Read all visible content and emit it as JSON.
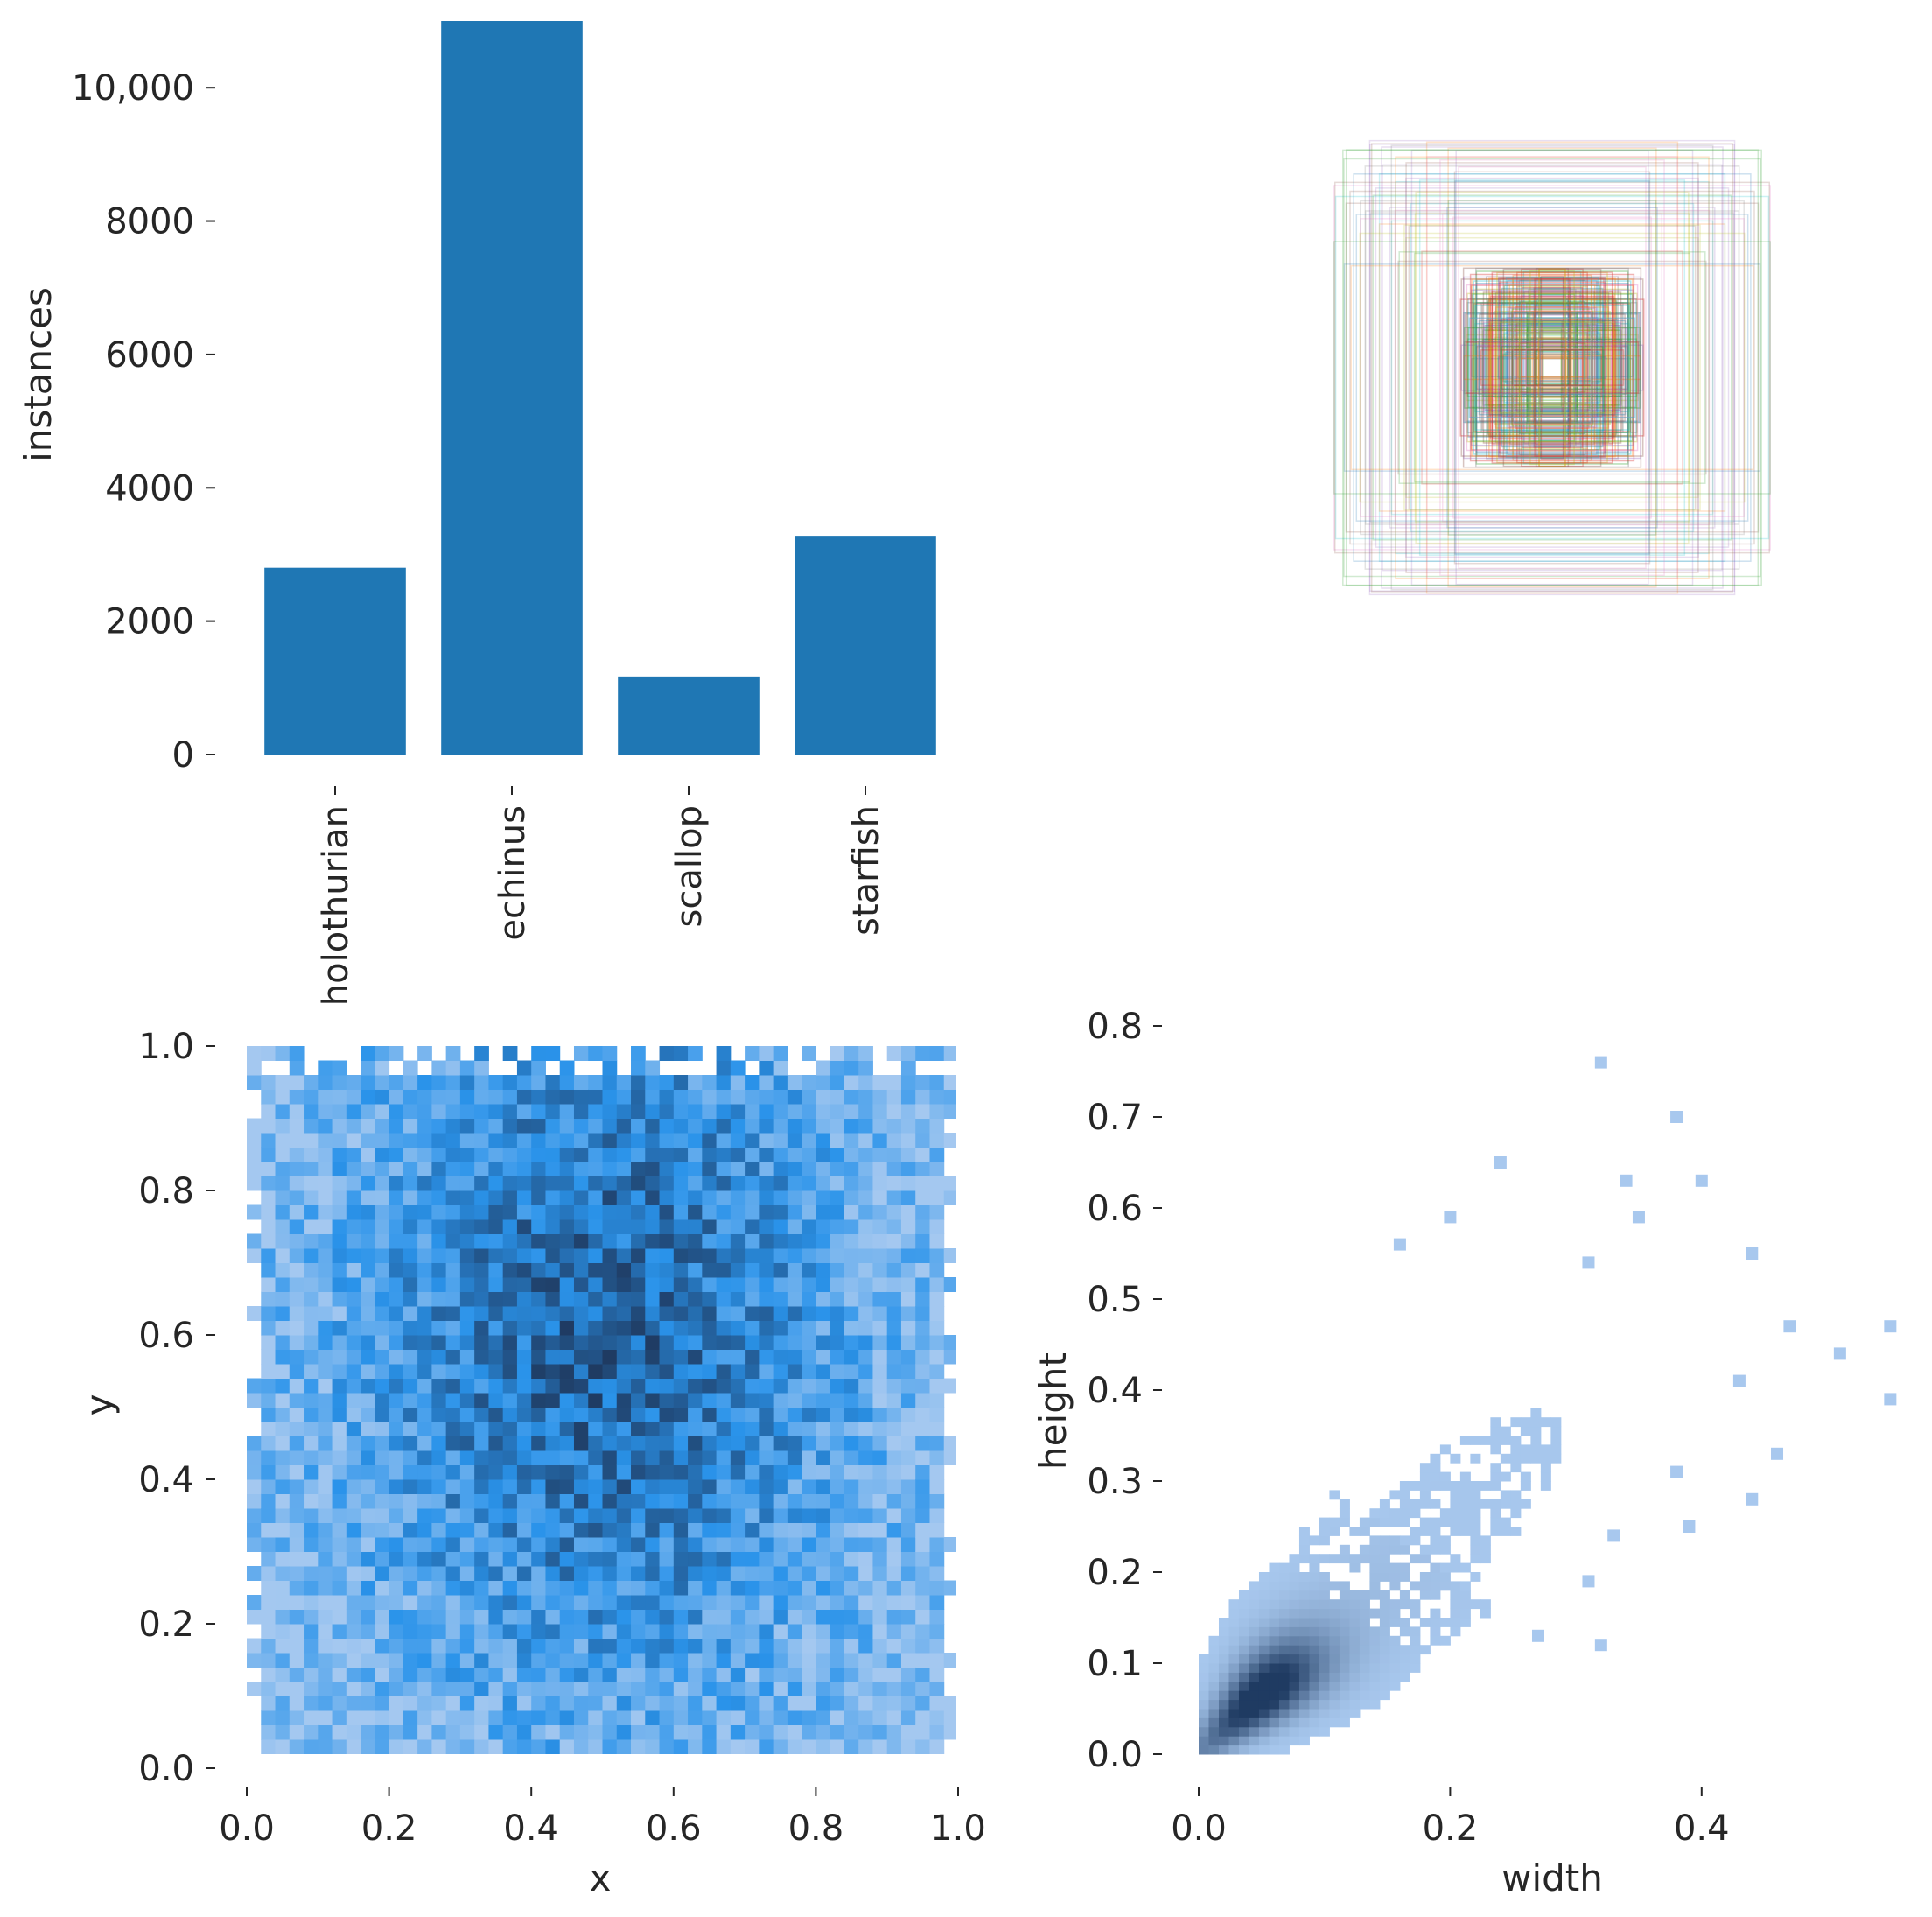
{
  "chart_data": [
    {
      "type": "bar",
      "categories": [
        "holothurian",
        "echinus",
        "scallop",
        "starfish"
      ],
      "values": [
        2800,
        11000,
        1170,
        3280
      ],
      "ylabel": "instances",
      "yticks": [
        "0",
        "2000",
        "4000",
        "6000",
        "8000",
        "10,000"
      ],
      "ylim": [
        0,
        11000
      ],
      "color": "#1f77b4",
      "grid": false
    },
    {
      "type": "box-overlay",
      "description": "Bounding box outlines centered on a common origin",
      "colors": [
        "#1f77b4",
        "#ff7f0e",
        "#2ca02c",
        "#d62728",
        "#9467bd",
        "#8c564b",
        "#e377c2",
        "#7f7f7f",
        "#bcbd22",
        "#17becf"
      ]
    },
    {
      "type": "heatmap",
      "xlabel": "x",
      "ylabel": "y",
      "xlim": [
        0,
        1
      ],
      "ylim": [
        0,
        1
      ],
      "xticks": [
        "0.0",
        "0.2",
        "0.4",
        "0.6",
        "0.8",
        "1.0"
      ],
      "yticks": [
        "0.0",
        "0.2",
        "0.4",
        "0.6",
        "0.8",
        "1.0"
      ],
      "data_extent": {
        "x": [
          0.01,
          0.99
        ],
        "y": [
          0.03,
          0.99
        ]
      },
      "bins": 50,
      "density_peak": {
        "x": 0.5,
        "y": 0.6
      },
      "color_light": "#a4c8f0",
      "color_mid": "#2a93ea",
      "color_dark": "#1f3b62"
    },
    {
      "type": "heatmap",
      "xlabel": "width",
      "ylabel": "height",
      "xlim": [
        0,
        0.56
      ],
      "ylim": [
        0,
        0.8
      ],
      "xticks": [
        "0.0",
        "0.2",
        "0.4"
      ],
      "yticks": [
        "0.0",
        "0.1",
        "0.2",
        "0.3",
        "0.4",
        "0.5",
        "0.6",
        "0.7",
        "0.8"
      ],
      "density_peak": {
        "x": 0.05,
        "y": 0.07
      },
      "outliers": [
        [
          0.32,
          0.76
        ],
        [
          0.38,
          0.7
        ],
        [
          0.24,
          0.65
        ],
        [
          0.34,
          0.63
        ],
        [
          0.4,
          0.63
        ],
        [
          0.2,
          0.59
        ],
        [
          0.35,
          0.59
        ],
        [
          0.44,
          0.55
        ],
        [
          0.16,
          0.56
        ],
        [
          0.31,
          0.54
        ],
        [
          0.47,
          0.47
        ],
        [
          0.51,
          0.44
        ],
        [
          0.55,
          0.47
        ],
        [
          0.55,
          0.39
        ],
        [
          0.43,
          0.41
        ],
        [
          0.46,
          0.33
        ],
        [
          0.44,
          0.28
        ],
        [
          0.38,
          0.31
        ],
        [
          0.39,
          0.25
        ],
        [
          0.33,
          0.24
        ],
        [
          0.31,
          0.19
        ],
        [
          0.32,
          0.12
        ],
        [
          0.27,
          0.13
        ]
      ],
      "color_light": "#a8c8ee",
      "color_dark": "#1f3b62"
    }
  ]
}
